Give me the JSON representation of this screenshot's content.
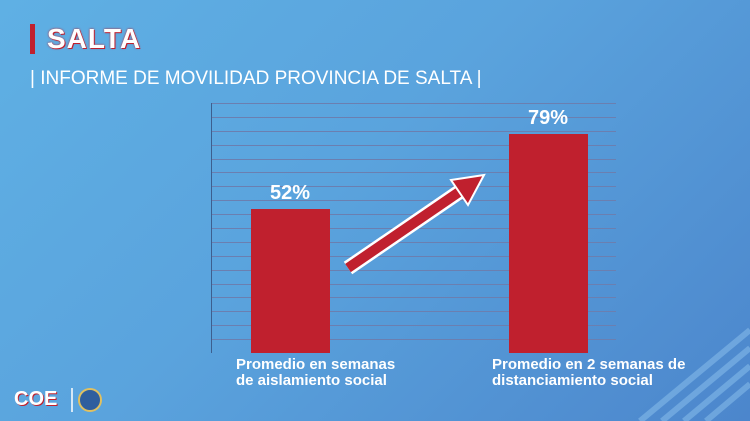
{
  "chart_data": {
    "type": "bar",
    "title": "SALTA",
    "subtitle": "| INFORME DE MOVILIDAD PROVINCIA DE SALTA |",
    "categories": [
      "Promedio en semanas de aislamiento social",
      "Promedio en 2 semanas de distanciamiento social"
    ],
    "values": [
      52,
      79
    ],
    "value_labels": [
      "52%",
      "79%"
    ],
    "color": "#c0202e",
    "ylim": [
      0,
      90
    ],
    "grid": true
  },
  "logo": "COE"
}
